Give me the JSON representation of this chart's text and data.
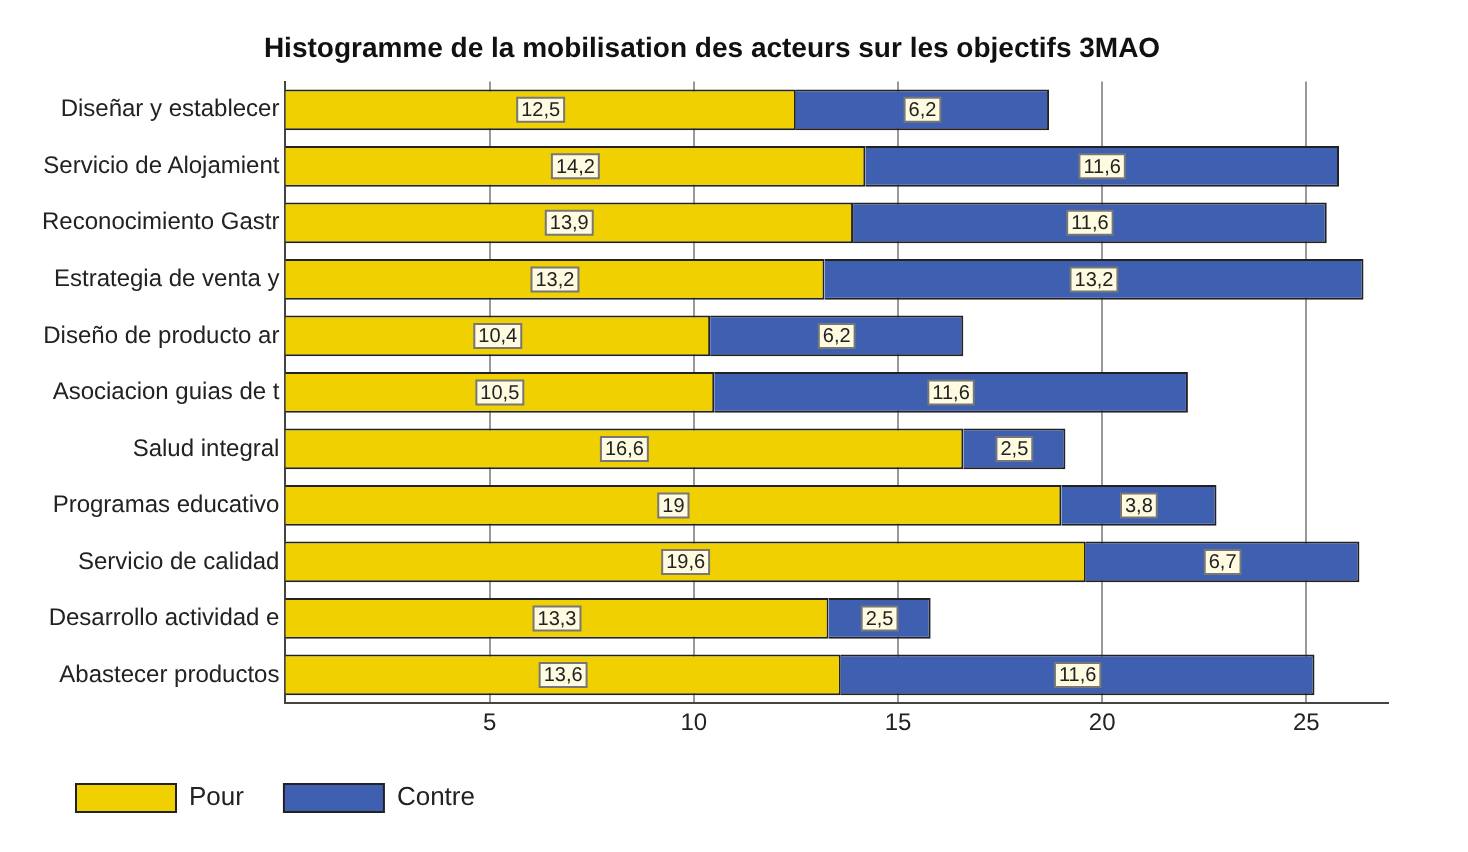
{
  "chart_data": {
    "type": "bar",
    "orientation": "horizontal",
    "stacked": true,
    "title": "Histogramme de la mobilisation des acteurs sur les objectifs 3MAO",
    "categories": [
      "Diseñar y establecer",
      "Servicio de Alojamient",
      "Reconocimiento Gastr",
      "Estrategia de venta y",
      "Diseño de producto ar",
      "Asociacion guias de t",
      "Salud integral",
      "Programas educativo",
      "Servicio de calidad",
      "Desarrollo actividad e",
      "Abastecer productos"
    ],
    "series": [
      {
        "name": "Pour",
        "color": "#f0d000",
        "values": [
          12.5,
          14.2,
          13.9,
          13.2,
          10.4,
          10.5,
          16.6,
          19,
          19.6,
          13.3,
          13.6
        ],
        "value_labels": [
          "12,5",
          "14,2",
          "13,9",
          "13,2",
          "10,4",
          "10,5",
          "16,6",
          "19",
          "19,6",
          "13,3",
          "13,6"
        ]
      },
      {
        "name": "Contre",
        "color": "#3f5fb0",
        "values": [
          6.2,
          11.6,
          11.6,
          13.2,
          6.2,
          11.6,
          2.5,
          3.8,
          6.7,
          2.5,
          11.6
        ],
        "value_labels": [
          "6,2",
          "11,6",
          "11,6",
          "13,2",
          "6,2",
          "11,6",
          "2,5",
          "3,8",
          "6,7",
          "2,5",
          "11,6"
        ]
      }
    ],
    "xlim": [
      0,
      27
    ],
    "xticks": [
      5,
      10,
      15,
      20,
      25
    ],
    "grid": "x",
    "legend": "bottom left"
  }
}
